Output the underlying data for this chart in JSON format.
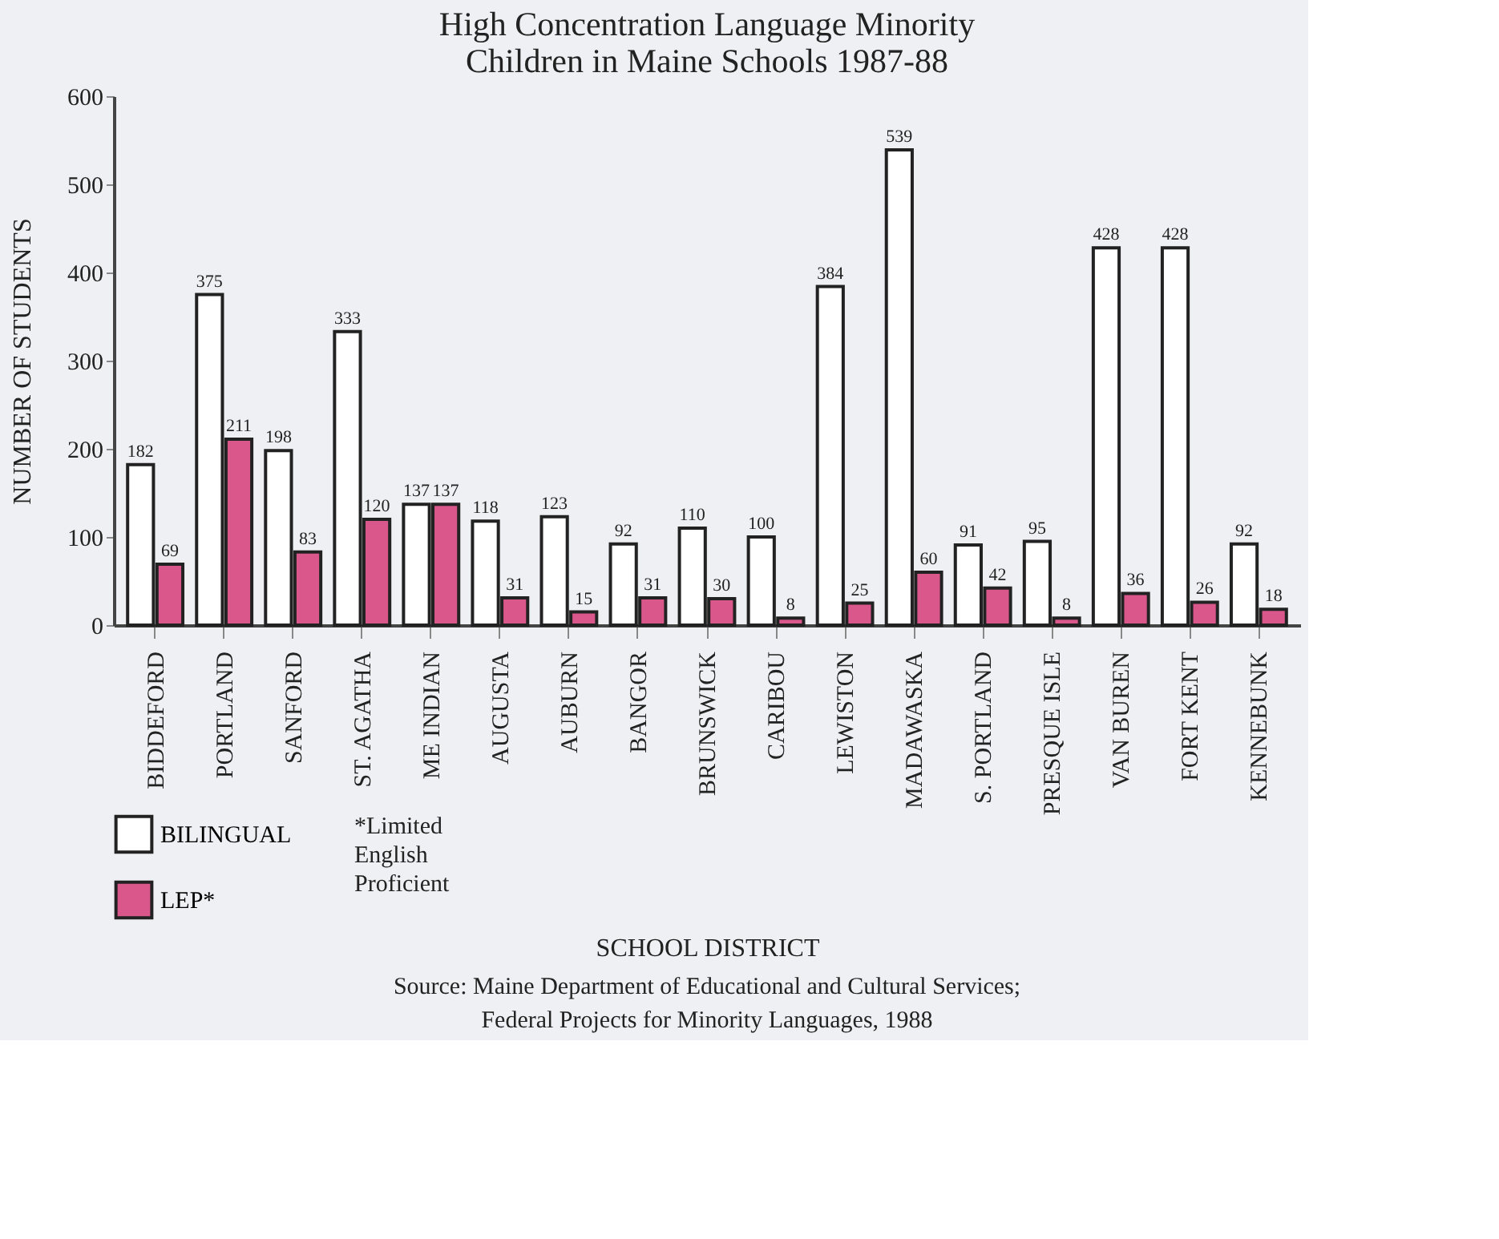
{
  "chart_data": {
    "type": "bar",
    "title": "High Concentration Language Minority\nChildren in Maine Schools 1987-88",
    "xlabel": "SCHOOL DISTRICT",
    "ylabel": "NUMBER OF STUDENTS",
    "categories": [
      "BIDDEFORD",
      "PORTLAND",
      "SANFORD",
      "ST. AGATHA",
      "ME INDIAN",
      "AUGUSTA",
      "AUBURN",
      "BANGOR",
      "BRUNSWICK",
      "CARIBOU",
      "LEWISTON",
      "MADAWASKA",
      "S. PORTLAND",
      "PRESQUE ISLE",
      "VAN BUREN",
      "FORT KENT",
      "KENNEBUNK"
    ],
    "series": [
      {
        "name": "BILINGUAL",
        "color": "#ffffff",
        "values": [
          182,
          375,
          198,
          333,
          137,
          118,
          123,
          92,
          110,
          100,
          384,
          539,
          91,
          95,
          428,
          428,
          92
        ]
      },
      {
        "name": "LEP*",
        "color": "#d9578a",
        "values": [
          69,
          211,
          83,
          120,
          137,
          31,
          15,
          31,
          30,
          8,
          25,
          60,
          42,
          8,
          36,
          26,
          18
        ]
      }
    ],
    "ylim": [
      0,
      600
    ],
    "yticks": [
      0,
      100,
      200,
      300,
      400,
      500,
      600
    ],
    "data_labels": true,
    "legend": "bottom left",
    "grid": false,
    "annotations": [
      "*Limited English Proficient",
      "Source: Maine Department of Educational and Cultural Services;\nFederal Projects for Minority Languages, 1988"
    ]
  }
}
